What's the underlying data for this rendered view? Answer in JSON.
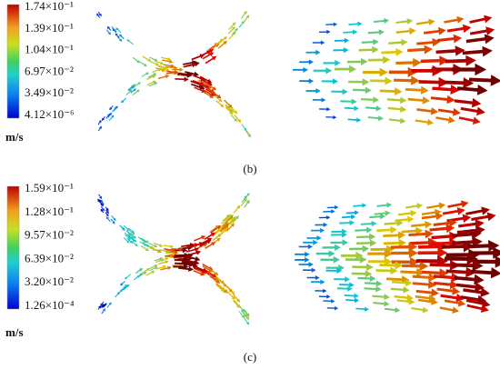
{
  "panels": [
    {
      "label": "(b)",
      "colorbar": {
        "unit": "m/s",
        "ticks": [
          "1.74×10⁻¹",
          "1.39×10⁻¹",
          "1.04×10⁻¹",
          "6.97×10⁻²",
          "3.49×10⁻²",
          "4.12×10⁻⁶"
        ]
      }
    },
    {
      "label": "(c)",
      "colorbar": {
        "unit": "m/s",
        "ticks": [
          "1.59×10⁻¹",
          "1.28×10⁻¹",
          "9.57×10⁻²",
          "6.39×10⁻²",
          "3.20×10⁻²",
          "1.26×10⁻⁴"
        ]
      }
    }
  ]
}
